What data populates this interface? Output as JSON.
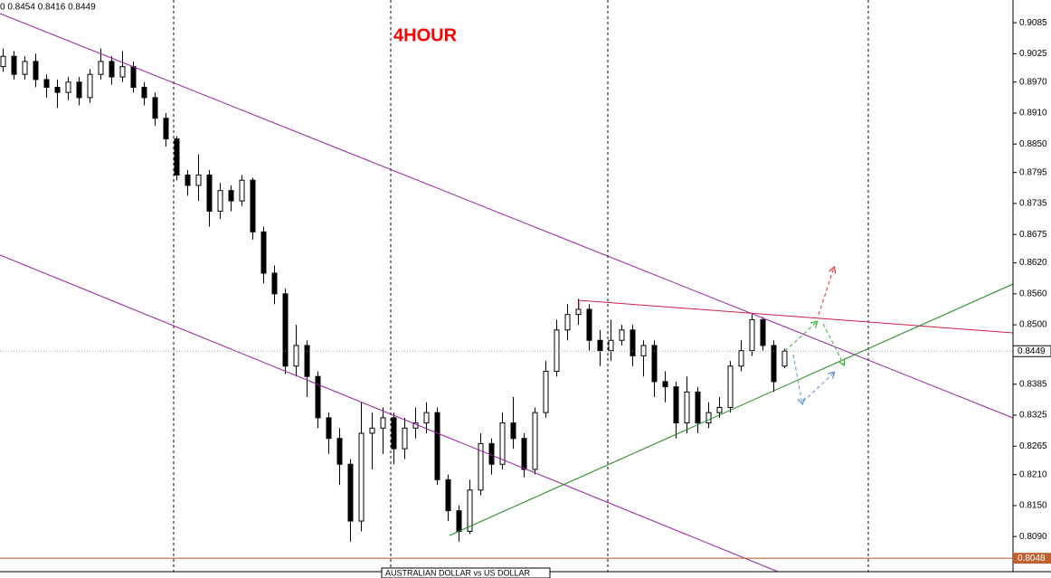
{
  "chart_data": {
    "type": "candlestick",
    "title": "4HOUR",
    "header": "0 0.8454 0.8416 0.8449",
    "symbol": "AUSTRALIAN DOLLAR vs US DOLLAR",
    "current_price": 0.8449,
    "level": 0.8048,
    "ylim": [
      0.8022,
      0.9129
    ],
    "yticks": [
      0.9085,
      0.9025,
      {
        "value": 0.897,
        "label": "0.8970"
      },
      {
        "value": 0.891,
        "label": "0.8910"
      },
      {
        "value": 0.885,
        "label": "0.8850"
      },
      0.8795,
      0.8735,
      0.8675,
      {
        "value": 0.862,
        "label": "0.8620"
      },
      {
        "value": 0.856,
        "label": "0.8560"
      },
      {
        "value": 0.85,
        "label": "0.8500"
      },
      0.8385,
      0.8325,
      0.8265,
      {
        "value": 0.821,
        "label": "0.8210"
      },
      {
        "value": 0.815,
        "label": "0.8150"
      },
      {
        "value": 0.809,
        "label": "0.8090"
      }
    ],
    "open": [
      0.9,
      0.902,
      0.8985,
      0.901,
      0.8975,
      0.896,
      0.895,
      0.897,
      0.894,
      0.8985,
      0.901,
      0.898,
      0.9,
      0.896,
      0.894,
      0.89,
      0.886,
      0.879,
      0.877,
      0.879,
      0.872,
      0.876,
      0.874,
      0.878,
      0.868,
      0.86,
      0.856,
      0.842,
      0.846,
      0.84,
      0.832,
      0.828,
      0.823,
      0.812,
      0.829,
      0.83,
      0.832,
      0.826,
      0.83,
      0.831,
      0.833,
      0.82,
      0.814,
      0.81,
      0.818,
      0.827,
      0.823,
      0.831,
      0.828,
      0.822,
      0.833,
      0.841,
      0.849,
      0.852,
      0.853,
      0.847,
      0.845,
      0.847,
      0.849,
      0.844,
      0.846,
      0.839,
      0.838,
      0.831,
      0.837,
      0.831,
      0.833,
      0.834,
      0.842,
      0.845,
      0.851,
      0.846,
      0.842
    ],
    "high": [
      0.9035,
      0.903,
      0.902,
      0.9025,
      0.8985,
      0.8975,
      0.898,
      0.898,
      0.8995,
      0.9035,
      0.902,
      0.903,
      0.901,
      0.897,
      0.895,
      0.891,
      0.8865,
      0.88,
      0.883,
      0.88,
      0.8775,
      0.877,
      0.879,
      0.8785,
      0.869,
      0.8615,
      0.857,
      0.85,
      0.847,
      0.841,
      0.833,
      0.83,
      0.824,
      0.835,
      0.833,
      0.834,
      0.833,
      0.832,
      0.834,
      0.835,
      0.834,
      0.821,
      0.815,
      0.82,
      0.829,
      0.828,
      0.833,
      0.836,
      0.829,
      0.834,
      0.843,
      0.851,
      0.854,
      0.855,
      0.854,
      0.849,
      0.851,
      0.85,
      0.85,
      0.847,
      0.847,
      0.841,
      0.839,
      0.84,
      0.838,
      0.835,
      0.836,
      0.843,
      0.847,
      0.852,
      0.8515,
      0.847,
      0.8454
    ],
    "low": [
      0.899,
      0.8975,
      0.8975,
      0.896,
      0.894,
      0.892,
      0.8935,
      0.8925,
      0.893,
      0.8975,
      0.8965,
      0.897,
      0.895,
      0.8925,
      0.8885,
      0.8845,
      0.878,
      0.875,
      0.874,
      0.869,
      0.8705,
      0.872,
      0.873,
      0.8665,
      0.858,
      0.854,
      0.8405,
      0.84,
      0.836,
      0.83,
      0.825,
      0.819,
      0.808,
      0.81,
      0.822,
      0.825,
      0.823,
      0.824,
      0.828,
      0.829,
      0.819,
      0.812,
      0.808,
      0.8095,
      0.817,
      0.821,
      0.822,
      0.826,
      0.8205,
      0.821,
      0.832,
      0.84,
      0.847,
      0.85,
      0.845,
      0.842,
      0.843,
      0.846,
      0.842,
      0.84,
      0.836,
      0.835,
      0.828,
      0.829,
      0.829,
      0.83,
      0.832,
      0.833,
      0.841,
      0.844,
      0.845,
      0.837,
      0.8416
    ],
    "close": [
      0.902,
      0.8985,
      0.901,
      0.8975,
      0.896,
      0.895,
      0.897,
      0.894,
      0.8985,
      0.901,
      0.898,
      0.9,
      0.896,
      0.894,
      0.89,
      0.886,
      0.879,
      0.877,
      0.879,
      0.872,
      0.876,
      0.874,
      0.878,
      0.868,
      0.86,
      0.856,
      0.842,
      0.846,
      0.84,
      0.832,
      0.828,
      0.823,
      0.812,
      0.829,
      0.83,
      0.832,
      0.826,
      0.83,
      0.831,
      0.833,
      0.82,
      0.814,
      0.81,
      0.818,
      0.827,
      0.823,
      0.831,
      0.828,
      0.822,
      0.833,
      0.841,
      0.849,
      0.852,
      0.853,
      0.847,
      0.845,
      0.847,
      0.849,
      0.844,
      0.846,
      0.839,
      0.838,
      0.831,
      0.837,
      0.831,
      0.833,
      0.834,
      0.842,
      0.845,
      0.851,
      0.846,
      0.839,
      0.8449
    ]
  }
}
